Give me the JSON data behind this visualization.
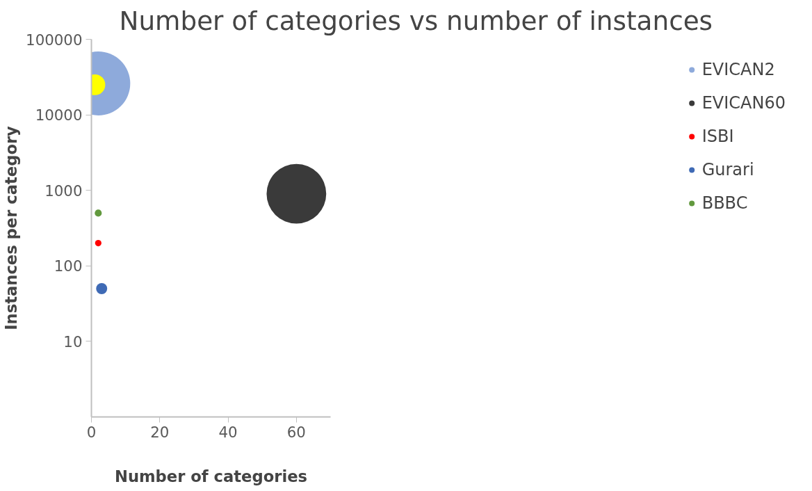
{
  "chart_data": {
    "type": "bubble",
    "title": "Number of categories vs number of instances",
    "xlabel": "Number of categories",
    "ylabel": "Instances per category",
    "log": "y",
    "xlim": [
      0,
      70
    ],
    "xticks": [
      0,
      20,
      40,
      60
    ],
    "ylim": [
      1,
      100000
    ],
    "yticks": [
      10,
      100,
      1000,
      10000,
      100000
    ],
    "grid": false,
    "legend": "right",
    "series": [
      {
        "name": "EVICAN2",
        "color": "#8eaadb",
        "x": [
          2
        ],
        "values": [
          26000
        ],
        "sizes": [
          1
        ]
      },
      {
        "name": "EVICAN60",
        "color": "#3a3a3a",
        "x": [
          60
        ],
        "values": [
          900
        ],
        "sizes": [
          0.87
        ]
      },
      {
        "name": "ISBI",
        "color": "#ff0000",
        "x": [
          2
        ],
        "values": [
          200
        ],
        "sizes": [
          0.01
        ]
      },
      {
        "color": "#ffff00",
        "x": [
          1
        ],
        "values": [
          25000
        ],
        "sizes": [
          0.106
        ]
      },
      {
        "name": "Gurari",
        "color": "#3f6ab5",
        "x": [
          3
        ],
        "values": [
          50
        ],
        "sizes": [
          0.03
        ]
      },
      {
        "name": "BBBC",
        "color": "#62993e",
        "x": [
          2
        ],
        "values": [
          500
        ],
        "sizes": [
          0.012
        ]
      }
    ]
  }
}
